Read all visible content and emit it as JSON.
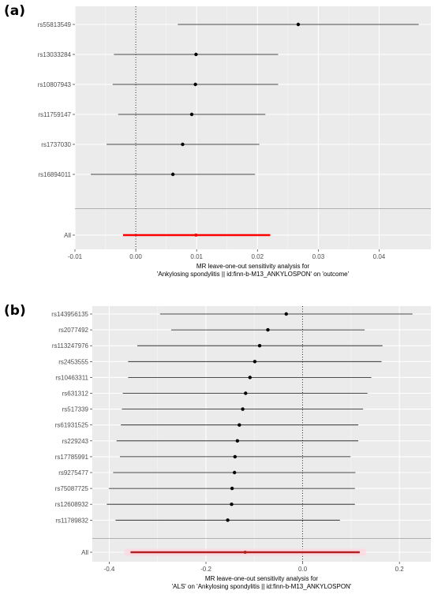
{
  "chart_data": [
    {
      "panel_label": "(a)",
      "type": "forest",
      "xlabel_lines": [
        "MR leave-one-out sensitivity analysis for",
        "'Ankylosing spondylitis || id:finn-b-M13_ANKYLOSPON' on 'outcome'"
      ],
      "xlim": [
        -0.01,
        0.0485
      ],
      "xticks": [
        -0.01,
        0.0,
        0.01,
        0.02,
        0.03,
        0.04
      ],
      "xtick_labels": [
        "-0.01",
        "0.00",
        "0.01",
        "0.02",
        "0.03",
        "0.04"
      ],
      "reference_line": 0,
      "grid": true,
      "rows": [
        {
          "label": "rs55813549",
          "estimate": 0.0267,
          "lower": 0.0069,
          "upper": 0.0465
        },
        {
          "label": "rs13033284",
          "estimate": 0.0099,
          "lower": -0.0036,
          "upper": 0.0234
        },
        {
          "label": "rs10807943",
          "estimate": 0.0098,
          "lower": -0.0038,
          "upper": 0.0234
        },
        {
          "label": "rs11759147",
          "estimate": 0.0092,
          "lower": -0.0029,
          "upper": 0.0213
        },
        {
          "label": "rs1737030",
          "estimate": 0.0077,
          "lower": -0.0048,
          "upper": 0.0203
        },
        {
          "label": "rs16894011",
          "estimate": 0.0061,
          "lower": -0.0074,
          "upper": 0.0196
        }
      ],
      "summary": {
        "label": "All",
        "estimate": 0.0099,
        "lower": -0.0021,
        "upper": 0.0221,
        "color": "#ff0000"
      }
    },
    {
      "panel_label": "(b)",
      "type": "forest",
      "xlabel_lines": [
        "MR leave-one-out sensitivity analysis for",
        "'ALS' on 'Ankylosing spondylitis || id:finn-b-M13_ANKYLOSPON'"
      ],
      "xlim": [
        -0.435,
        0.265
      ],
      "xticks": [
        -0.4,
        -0.2,
        0.0,
        0.2
      ],
      "xtick_labels": [
        "-0.4",
        "-0.2",
        "0.0",
        "0.2"
      ],
      "reference_line": 0,
      "grid": true,
      "rows": [
        {
          "label": "rs143956135",
          "estimate": -0.034,
          "lower": -0.295,
          "upper": 0.227
        },
        {
          "label": "rs2077492",
          "estimate": -0.072,
          "lower": -0.272,
          "upper": 0.128
        },
        {
          "label": "rs113247976",
          "estimate": -0.089,
          "lower": -0.342,
          "upper": 0.165
        },
        {
          "label": "rs2453555",
          "estimate": -0.099,
          "lower": -0.361,
          "upper": 0.163
        },
        {
          "label": "rs10463311",
          "estimate": -0.109,
          "lower": -0.361,
          "upper": 0.142
        },
        {
          "label": "rs631312",
          "estimate": -0.118,
          "lower": -0.372,
          "upper": 0.134
        },
        {
          "label": "rs517339",
          "estimate": -0.124,
          "lower": -0.374,
          "upper": 0.125
        },
        {
          "label": "rs61931525",
          "estimate": -0.131,
          "lower": -0.376,
          "upper": 0.115
        },
        {
          "label": "rs229243",
          "estimate": -0.135,
          "lower": -0.385,
          "upper": 0.115
        },
        {
          "label": "rs17785991",
          "estimate": -0.14,
          "lower": -0.378,
          "upper": 0.099
        },
        {
          "label": "rs9275477",
          "estimate": -0.141,
          "lower": -0.392,
          "upper": 0.109
        },
        {
          "label": "rs75087725",
          "estimate": -0.146,
          "lower": -0.401,
          "upper": 0.108
        },
        {
          "label": "rs12608932",
          "estimate": -0.147,
          "lower": -0.405,
          "upper": 0.108
        },
        {
          "label": "rs11789832",
          "estimate": -0.155,
          "lower": -0.387,
          "upper": 0.077
        }
      ],
      "summary": {
        "label": "All",
        "estimate": -0.119,
        "lower": -0.356,
        "upper": 0.118,
        "color": "#b22222",
        "band_color": "#ffd6de"
      }
    }
  ]
}
